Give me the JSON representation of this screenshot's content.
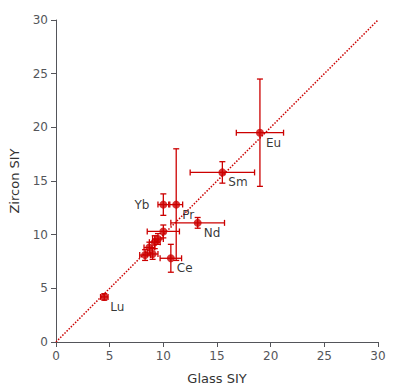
{
  "chart_data": {
    "type": "scatter",
    "xlabel": "Glass SIY",
    "ylabel": "Zircon SIY",
    "x": [
      4.5,
      8.3,
      8.7,
      9.0,
      9.2,
      9.5,
      10.0,
      10.7,
      10.0,
      11.2,
      13.2,
      15.5,
      19.0
    ],
    "y": [
      4.2,
      8.1,
      8.8,
      8.2,
      9.3,
      9.6,
      10.3,
      7.8,
      12.8,
      12.8,
      11.1,
      15.8,
      19.5
    ],
    "xerr": [
      0.35,
      0.5,
      0.5,
      0.5,
      0.5,
      0.5,
      1.5,
      1.0,
      0.5,
      0.6,
      2.5,
      3.0,
      2.2
    ],
    "yerr": [
      0.3,
      0.5,
      0.5,
      0.5,
      0.6,
      0.5,
      0.6,
      1.3,
      1.0,
      5.2,
      0.5,
      1.0,
      5.0
    ],
    "labels": [
      "Lu",
      null,
      null,
      null,
      null,
      null,
      null,
      "Ce",
      "Yb",
      "Pr",
      "Nd",
      "Sm",
      "Eu"
    ],
    "color": "#cc0000",
    "marker": "circle",
    "lines": [
      {
        "x": [
          0,
          30
        ],
        "y": [
          0,
          30
        ],
        "color": "#cc0000",
        "line_style": "dotted"
      }
    ],
    "xlim": [
      0,
      30
    ],
    "ylim": [
      0,
      30
    ],
    "xticks": [
      0,
      5,
      10,
      15,
      20,
      25,
      30
    ],
    "yticks": [
      0,
      5,
      10,
      15,
      20,
      25,
      30
    ],
    "grid": false
  }
}
